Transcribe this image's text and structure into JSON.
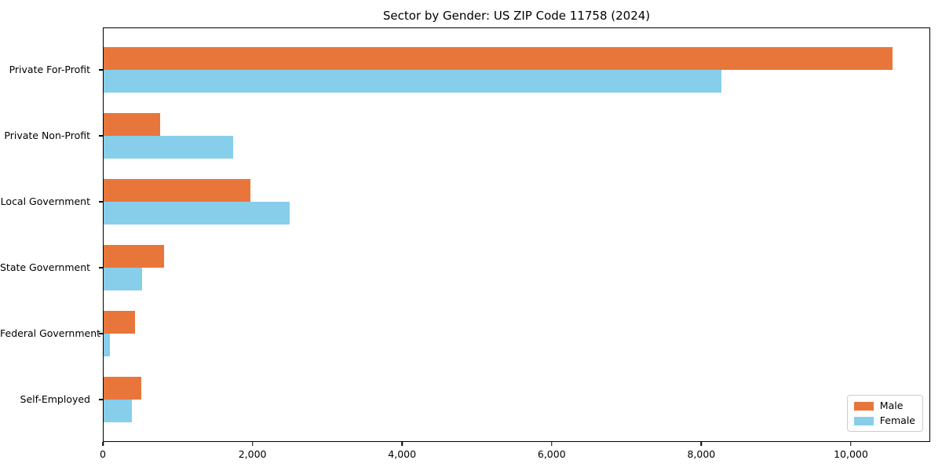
{
  "title": "Sector by Gender: US ZIP Code 11758 (2024)",
  "chart_data": {
    "type": "bar",
    "orientation": "horizontal",
    "title": "Sector by Gender: US ZIP Code 11758 (2024)",
    "categories": [
      "Private For-Profit",
      "Private Non-Profit",
      "Local Government",
      "State Government",
      "Federal Government",
      "Self-Employed"
    ],
    "series": [
      {
        "name": "Male",
        "color": "#E8763B",
        "values": [
          10550,
          760,
          1960,
          805,
          420,
          505
        ]
      },
      {
        "name": "Female",
        "color": "#87CEEB",
        "values": [
          8260,
          1730,
          2490,
          510,
          80,
          375
        ]
      }
    ],
    "xlabel": "",
    "ylabel": "",
    "xlim": [
      0,
      11060
    ],
    "x_ticks": [
      0,
      2000,
      4000,
      6000,
      8000,
      10000
    ],
    "x_tick_labels": [
      "0",
      "2,000",
      "4,000",
      "6,000",
      "8,000",
      "10,000"
    ],
    "grid": false,
    "legend_position": "lower right",
    "background_color": "#ffffff",
    "text_color": "#000000"
  }
}
